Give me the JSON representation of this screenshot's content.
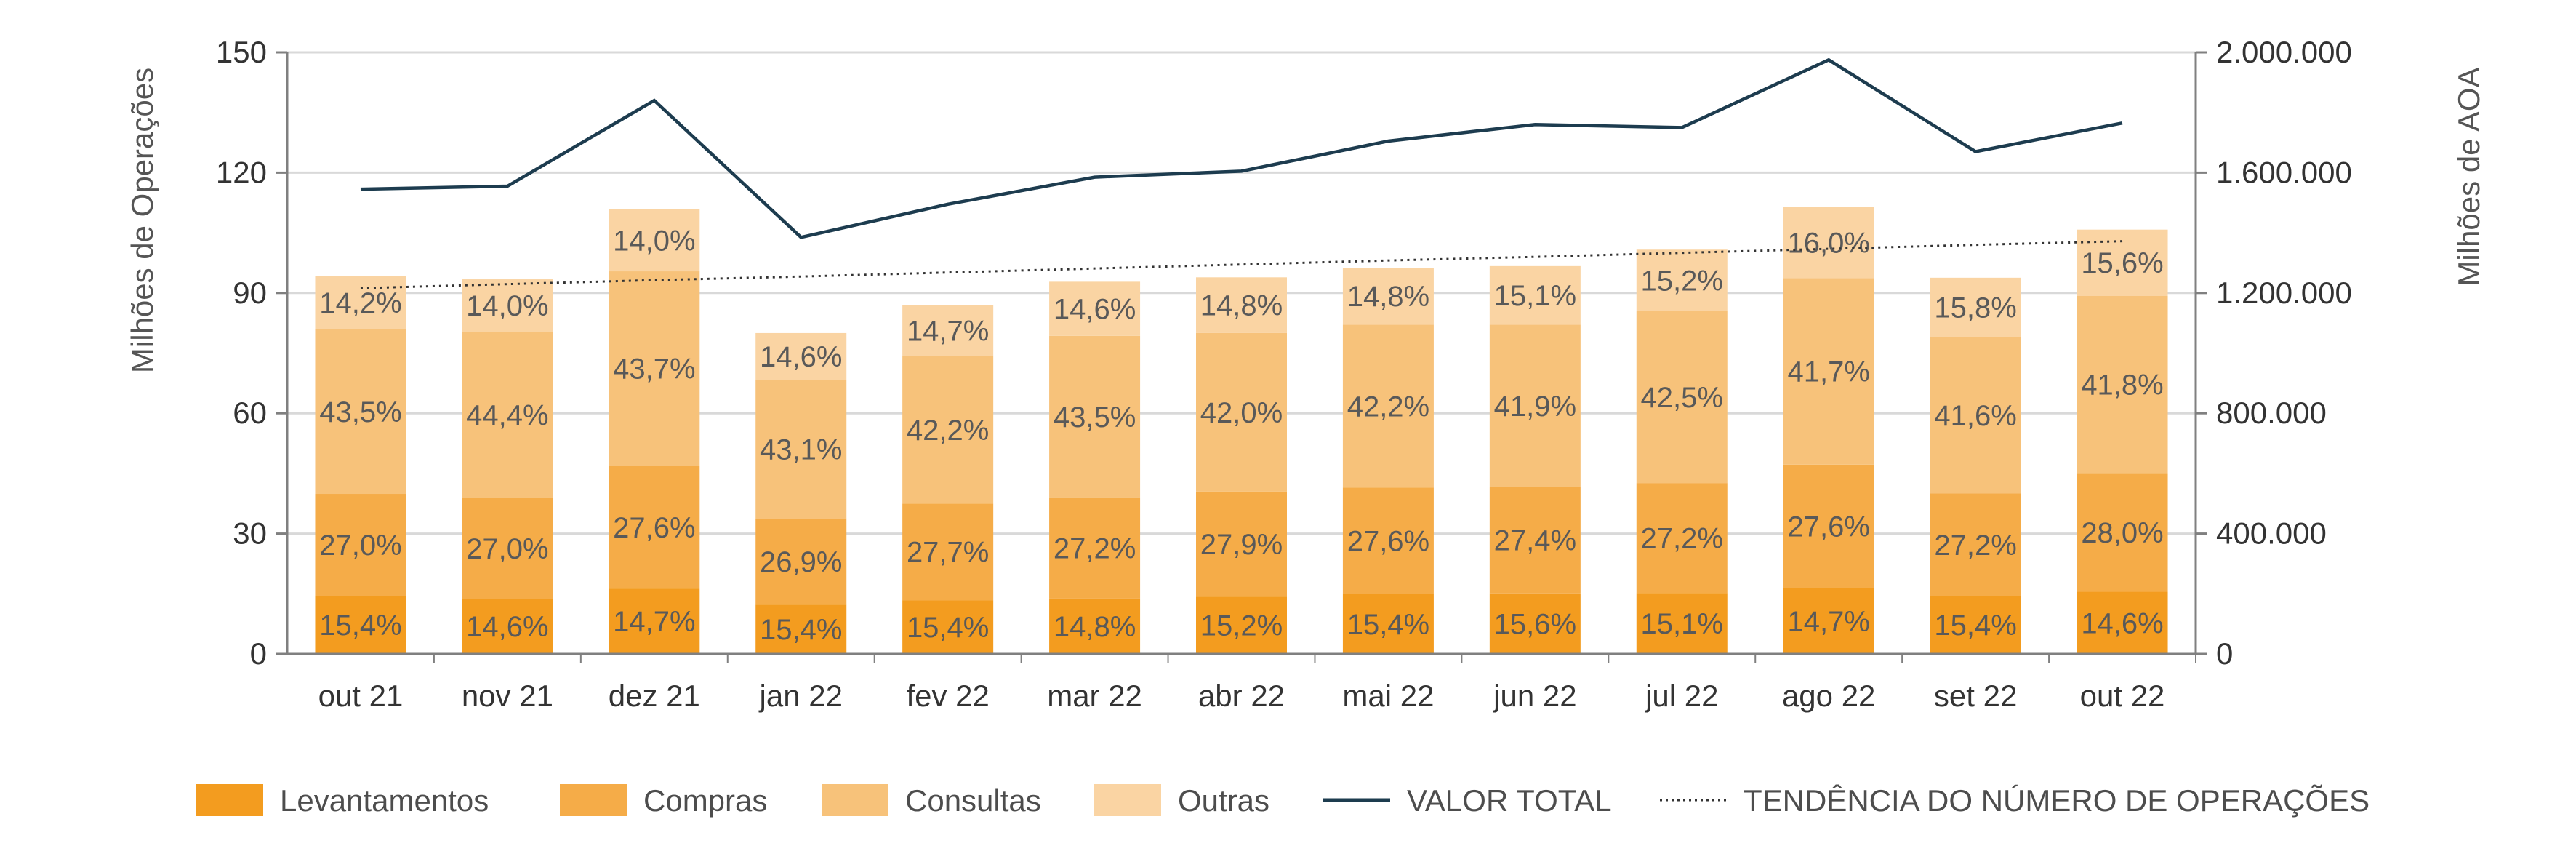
{
  "chart_data": {
    "type": "bar",
    "stacked": true,
    "categories": [
      "out 21",
      "nov 21",
      "dez 21",
      "jan 22",
      "fev 22",
      "mar 22",
      "abr 22",
      "mai 22",
      "jun 22",
      "jul 22",
      "ago 22",
      "set 22",
      "out 22"
    ],
    "series": [
      {
        "name": "Levantamentos",
        "color": "#f39c1f",
        "percent_labels": [
          "15,4%",
          "14,6%",
          "14,7%",
          "15,4%",
          "15,4%",
          "14,8%",
          "15,2%",
          "15,4%",
          "15,6%",
          "15,1%",
          "14,7%",
          "15,4%",
          "14,6%"
        ],
        "values": [
          14.5,
          13.7,
          16.3,
          12.3,
          13.4,
          13.8,
          14.3,
          14.9,
          15.1,
          15.2,
          16.4,
          14.5,
          15.5
        ]
      },
      {
        "name": "Compras",
        "color": "#f5ac48",
        "percent_labels": [
          "27,0%",
          "27,0%",
          "27,6%",
          "26,9%",
          "27,7%",
          "27,2%",
          "27,9%",
          "27,6%",
          "27,4%",
          "27,2%",
          "27,6%",
          "27,2%",
          "28,0%"
        ],
        "values": [
          25.4,
          25.2,
          30.6,
          21.5,
          24.1,
          25.2,
          26.2,
          26.6,
          26.5,
          27.4,
          30.8,
          25.5,
          29.6
        ]
      },
      {
        "name": "Consultas",
        "color": "#f7c27a",
        "percent_labels": [
          "43,5%",
          "44,4%",
          "43,7%",
          "43,1%",
          "42,2%",
          "43,5%",
          "42,0%",
          "42,2%",
          "41,9%",
          "42,5%",
          "41,7%",
          "41,6%",
          "41,8%"
        ],
        "values": [
          41.0,
          41.4,
          48.5,
          34.5,
          36.7,
          40.3,
          39.5,
          40.6,
          40.5,
          42.9,
          46.5,
          39.0,
          44.2
        ]
      },
      {
        "name": "Outras",
        "color": "#fad4a3",
        "percent_labels": [
          "14,2%",
          "14,0%",
          "14,0%",
          "14,6%",
          "14,7%",
          "14,6%",
          "14,8%",
          "14,8%",
          "15,1%",
          "15,2%",
          "16,0%",
          "15,8%",
          "15,6%"
        ],
        "values": [
          13.4,
          13.1,
          15.5,
          11.7,
          12.8,
          13.5,
          13.9,
          14.2,
          14.6,
          15.3,
          17.8,
          14.8,
          16.5
        ]
      }
    ],
    "line_series": {
      "name": "VALOR TOTAL",
      "color": "#1d3c4f",
      "axis": "right",
      "values": [
        1545000,
        1555000,
        1840000,
        1385000,
        1495000,
        1585000,
        1605000,
        1705000,
        1760000,
        1750000,
        1975000,
        1670000,
        1765000
      ]
    },
    "trend_series": {
      "name": "TENDÊNCIA DO NÚMERO DE OPERAÇÕES",
      "style": "dotted",
      "color": "#333333",
      "axis": "left",
      "values": [
        91.2,
        92.2,
        93.2,
        94.1,
        95.1,
        96.1,
        97.1,
        98.1,
        99.0,
        100.0,
        101.0,
        102.0,
        102.9
      ]
    },
    "ylabel": "Milhões de Operações",
    "y2label": "Milhões de AOA",
    "ylim": [
      0,
      150
    ],
    "yticks": [
      0,
      30,
      60,
      90,
      120,
      150
    ],
    "y2lim": [
      0,
      2000000
    ],
    "y2ticks": [
      "0",
      "400.000",
      "800.000",
      "1.200.000",
      "1.600.000",
      "2.000.000"
    ],
    "grid": true,
    "legend_position": "bottom"
  }
}
